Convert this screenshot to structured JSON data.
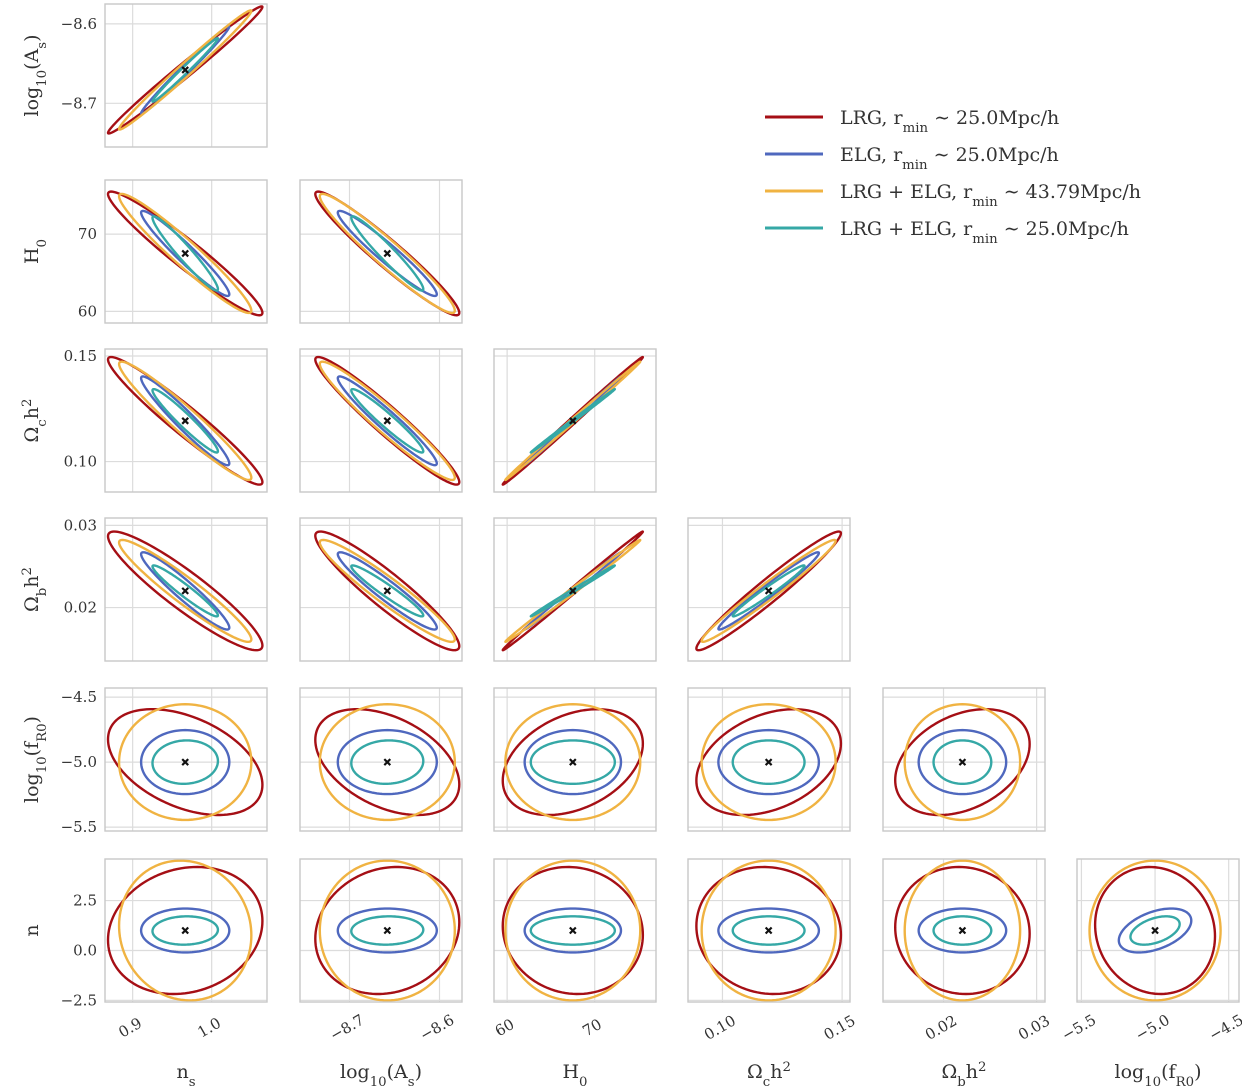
{
  "chart_data": {
    "type": "scatter",
    "description_kind": "corner plot of 1-sigma Fisher forecast ellipses",
    "grid": true,
    "params": [
      {
        "key": "ns",
        "label": "n_s",
        "label_html": "n<tspan baseline-shift='sub' font-size='70%'>s</tspan>",
        "fiducial": 0.9665,
        "range": [
          0.865,
          1.07
        ],
        "ticks": [
          0.9,
          1.0
        ],
        "tick_labels": [
          "0.9",
          "1.0"
        ]
      },
      {
        "key": "logAs",
        "label": "log10(A_s)",
        "label_html": "log<tspan baseline-shift='sub' font-size='70%'>10</tspan>(A<tspan baseline-shift='sub' font-size='70%'>s</tspan>)",
        "fiducial": -8.658,
        "range": [
          -8.755,
          -8.575
        ],
        "ticks": [
          -8.7,
          -8.6
        ],
        "tick_labels": [
          "−8.7",
          "−8.6"
        ]
      },
      {
        "key": "H0",
        "label": "H_0",
        "label_html": "H<tspan baseline-shift='sub' font-size='70%'>0</tspan>",
        "fiducial": 67.5,
        "range": [
          58.5,
          77.0
        ],
        "ticks": [
          60,
          70
        ],
        "tick_labels": [
          "60",
          "70"
        ]
      },
      {
        "key": "omch2",
        "label": "Ω_c h^2",
        "label_html": "Ω<tspan baseline-shift='sub' font-size='70%'>c</tspan>h<tspan baseline-shift='super' font-size='70%'>2</tspan>",
        "fiducial": 0.1193,
        "range": [
          0.0856,
          0.1533
        ],
        "ticks": [
          0.1,
          0.15
        ],
        "tick_labels": [
          "0.10",
          "0.15"
        ]
      },
      {
        "key": "ombh2",
        "label": "Ω_b h^2",
        "label_html": "Ω<tspan baseline-shift='sub' font-size='70%'>b</tspan>h<tspan baseline-shift='super' font-size='70%'>2</tspan>",
        "fiducial": 0.02203,
        "range": [
          0.0135,
          0.0309
        ],
        "ticks": [
          0.02,
          0.03
        ],
        "tick_labels": [
          "0.02",
          "0.03"
        ]
      },
      {
        "key": "logfR0",
        "label": "log10(f_R0)",
        "label_html": "log<tspan baseline-shift='sub' font-size='70%'>10</tspan>(f<tspan baseline-shift='sub' font-size='70%'>R0</tspan>)",
        "fiducial": -5.0,
        "range": [
          -5.53,
          -4.43
        ],
        "ticks": [
          -5.5,
          -5.0,
          -4.5
        ],
        "tick_labels": [
          "−5.5",
          "−5.0",
          "−4.5"
        ]
      },
      {
        "key": "n",
        "label": "n",
        "label_html": "n",
        "fiducial": 1.0,
        "range": [
          -2.58,
          4.58
        ],
        "ticks": [
          -2.5,
          0.0,
          2.5
        ],
        "tick_labels": [
          "−2.5",
          "0.0",
          "2.5"
        ]
      }
    ],
    "series": [
      {
        "name": "LRG, r_min ~ 25.0Mpc/h",
        "label_html": "LRG, r<tspan baseline-shift='sub' font-size='70%'>min</tspan> ∼ 25.0Mpc/h",
        "color": "#a50f15",
        "sigma": {
          "ns": 0.0977,
          "logAs": 0.08,
          "H0": 8.0,
          "omch2": 0.0302,
          "ombh2": 0.00722,
          "logfR0": 0.407,
          "n": 3.18
        },
        "rho": {
          "ns|logAs": 0.99,
          "ns|H0": -0.96,
          "ns|omch2": -0.96,
          "ns|ombh2": -0.92,
          "ns|logfR0": -0.43,
          "ns|n": 0.15,
          "logAs|H0": -0.96,
          "logAs|omch2": -0.96,
          "logAs|ombh2": -0.93,
          "logAs|logfR0": -0.42,
          "logAs|n": 0.13,
          "H0|omch2": 0.998,
          "H0|ombh2": 0.998,
          "H0|logfR0": 0.35,
          "H0|n": -0.07,
          "omch2|ombh2": 0.97,
          "omch2|logfR0": 0.35,
          "omch2|n": -0.07,
          "ombh2|logfR0": 0.34,
          "ombh2|n": -0.05,
          "logfR0|n": -0.09
        }
      },
      {
        "name": "ELG, r_min ~ 25.0Mpc/h",
        "label_html": "ELG, r<tspan baseline-shift='sub' font-size='70%'>min</tspan> ∼ 25.0Mpc/h",
        "color": "#4f68be",
        "sigma": {
          "ns": 0.0558,
          "logAs": 0.055,
          "H0": 5.5,
          "omch2": 0.021,
          "ombh2": 0.0047,
          "logfR0": 0.246,
          "n": 1.1
        },
        "rho": {
          "ns|logAs": 0.99,
          "ns|H0": -0.96,
          "ns|omch2": -0.96,
          "ns|ombh2": -0.95,
          "ns|logfR0": 0.0,
          "ns|n": 0.0,
          "logAs|H0": -0.96,
          "logAs|omch2": -0.96,
          "logAs|ombh2": -0.95,
          "logAs|logfR0": 0.0,
          "logAs|n": 0.0,
          "H0|omch2": 0.999,
          "H0|ombh2": 0.998,
          "H0|logfR0": 0.0,
          "H0|n": 0.0,
          "omch2|ombh2": 0.98,
          "omch2|logfR0": 0.0,
          "omch2|n": 0.0,
          "ombh2|logfR0": 0.0,
          "ombh2|n": 0.0,
          "logfR0|n": 0.45
        }
      },
      {
        "name": "LRG + ELG, r_min ~ 43.79Mpc/h",
        "label_html": "LRG + ELG, r<tspan baseline-shift='sub' font-size='70%'>min</tspan> ∼ 43.79Mpc/h",
        "color": "#f0b342",
        "sigma": {
          "ns": 0.0837,
          "logAs": 0.075,
          "H0": 7.7,
          "omch2": 0.028,
          "ombh2": 0.0062,
          "logfR0": 0.445,
          "n": 3.5
        },
        "rho": {
          "ns|logAs": 0.99,
          "ns|H0": -0.96,
          "ns|omch2": -0.96,
          "ns|ombh2": -0.95,
          "ns|logfR0": 0.0,
          "ns|n": -0.07,
          "logAs|H0": -0.96,
          "logAs|omch2": -0.96,
          "logAs|ombh2": -0.95,
          "logAs|logfR0": 0.0,
          "logAs|n": 0.0,
          "H0|omch2": 0.999,
          "H0|ombh2": 0.998,
          "H0|logfR0": 0.0,
          "H0|n": 0.0,
          "omch2|ombh2": 0.98,
          "omch2|logfR0": 0.0,
          "omch2|n": 0.0,
          "ombh2|logfR0": 0.0,
          "ombh2|n": 0.0,
          "logfR0|n": 0.0
        }
      },
      {
        "name": "LRG + ELG, r_min ~ 25.0Mpc/h",
        "label_html": "LRG + ELG, r<tspan baseline-shift='sub' font-size='70%'>min</tspan> ∼ 25.0Mpc/h",
        "color": "#35a8a6",
        "sigma": {
          "ns": 0.0414,
          "logAs": 0.04,
          "H0": 4.8,
          "omch2": 0.015,
          "ombh2": 0.0031,
          "logfR0": 0.167,
          "n": 0.71
        },
        "rho": {
          "ns|logAs": 0.99,
          "ns|H0": -0.96,
          "ns|omch2": -0.96,
          "ns|ombh2": -0.96,
          "ns|logfR0": 0.05,
          "ns|n": 0.05,
          "logAs|H0": -0.96,
          "logAs|omch2": -0.96,
          "logAs|ombh2": -0.96,
          "logAs|logfR0": 0.05,
          "logAs|n": 0.05,
          "H0|omch2": 0.999,
          "H0|ombh2": 0.998,
          "H0|logfR0": 0.0,
          "H0|n": 0.0,
          "omch2|ombh2": 0.98,
          "omch2|logfR0": 0.0,
          "omch2|n": 0.0,
          "ombh2|logfR0": 0.0,
          "ombh2|n": 0.0,
          "logfR0|n": 0.45
        }
      }
    ],
    "fiducial_marker": "x",
    "legend_placement": "upper-right"
  }
}
